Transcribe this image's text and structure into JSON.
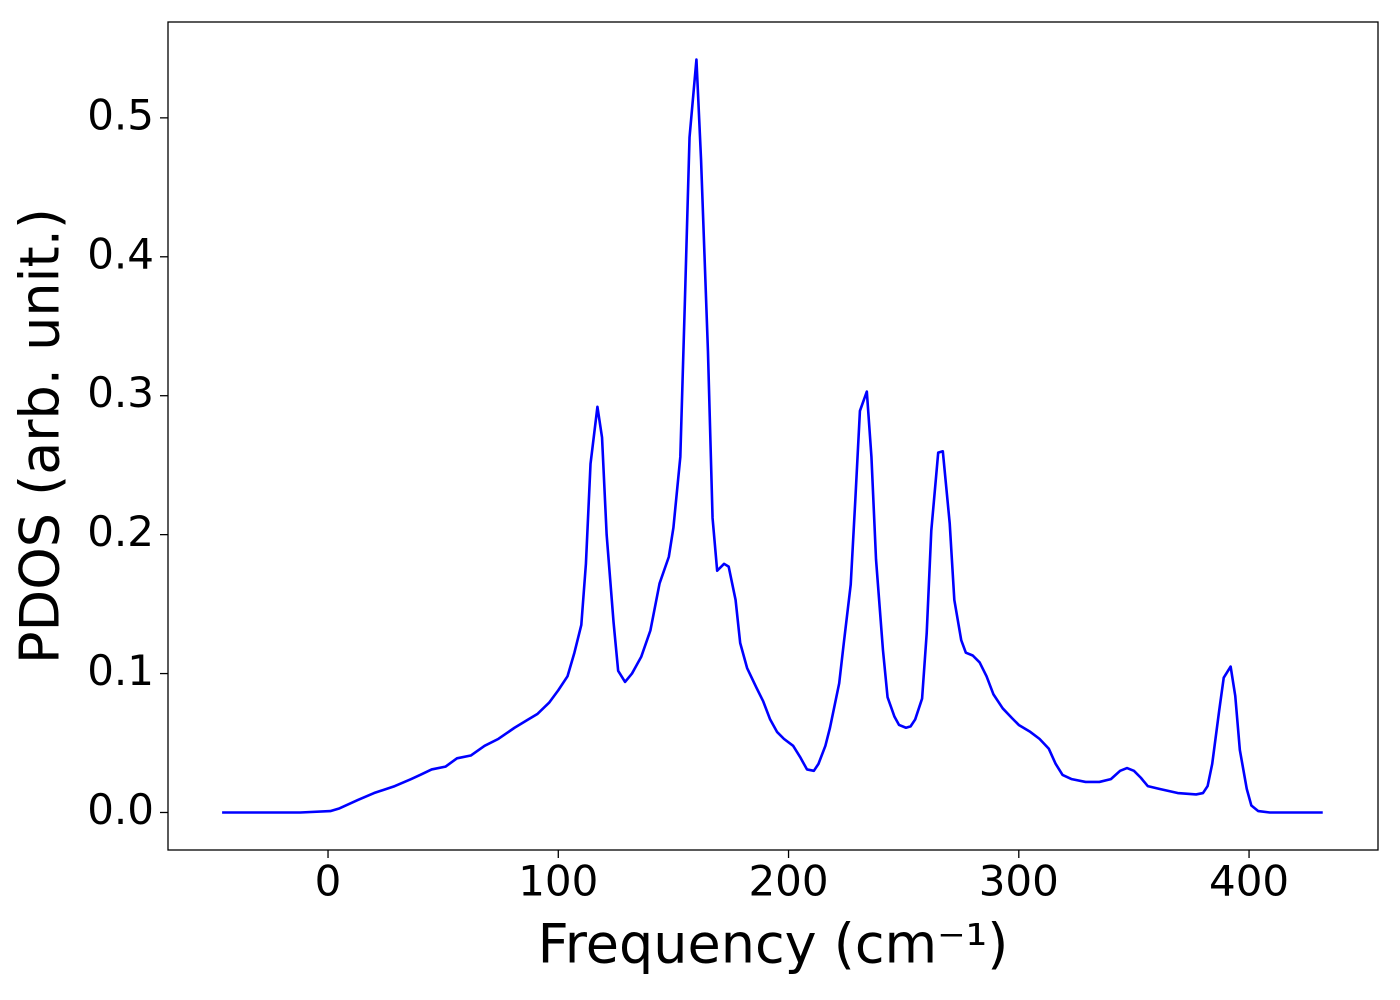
{
  "chart_data": {
    "type": "line",
    "xlabel": "Frequency (cm⁻¹)",
    "ylabel": "PDOS (arb. unit.)",
    "xlim": [
      -69.5,
      456
    ],
    "ylim": [
      -0.027,
      0.569
    ],
    "xticks": [
      0,
      100,
      200,
      300,
      400
    ],
    "yticks": [
      {
        "value": 0,
        "label": "0.0"
      },
      0.1,
      0.2,
      0.3,
      0.4,
      0.5
    ],
    "x": [
      -46,
      -12,
      1,
      5,
      13,
      20,
      29,
      36,
      40,
      45,
      51,
      56,
      62,
      68,
      74,
      81,
      87,
      91,
      96,
      100,
      104,
      107,
      110,
      112,
      114,
      117,
      119,
      121,
      124,
      126,
      129,
      132,
      136,
      140,
      144,
      148,
      150,
      153,
      155,
      157,
      160,
      162,
      165,
      167,
      169,
      172,
      174,
      177,
      179,
      182,
      186,
      189,
      192,
      195,
      198,
      202,
      205,
      208,
      211,
      213,
      216,
      218,
      222,
      224,
      227,
      229,
      231,
      234,
      236,
      238,
      241,
      243,
      246,
      248,
      251,
      253,
      255,
      258,
      260,
      262,
      265,
      267,
      270,
      272,
      275,
      277,
      280,
      283,
      286,
      289,
      293,
      297,
      300,
      305,
      309,
      313,
      316,
      319,
      323,
      329,
      335,
      340,
      344,
      347,
      350,
      353,
      356,
      361,
      369,
      377,
      380,
      382,
      384,
      387,
      389,
      392,
      394,
      396,
      399,
      401,
      404,
      409,
      432
    ],
    "series": [
      {
        "name": "PDOS",
        "color": "#0000ff",
        "values": [
          0,
          0,
          0.001,
          0.003,
          0.009,
          0.014,
          0.019,
          0.024,
          0.027,
          0.031,
          0.033,
          0.039,
          0.041,
          0.048,
          0.053,
          0.061,
          0.067,
          0.071,
          0.079,
          0.088,
          0.098,
          0.115,
          0.135,
          0.179,
          0.251,
          0.292,
          0.27,
          0.2,
          0.137,
          0.102,
          0.094,
          0.1,
          0.112,
          0.131,
          0.165,
          0.184,
          0.205,
          0.256,
          0.369,
          0.486,
          0.542,
          0.47,
          0.332,
          0.212,
          0.174,
          0.179,
          0.177,
          0.153,
          0.122,
          0.104,
          0.09,
          0.08,
          0.067,
          0.058,
          0.053,
          0.048,
          0.04,
          0.031,
          0.03,
          0.035,
          0.048,
          0.061,
          0.093,
          0.122,
          0.164,
          0.225,
          0.289,
          0.303,
          0.256,
          0.182,
          0.117,
          0.083,
          0.069,
          0.063,
          0.061,
          0.062,
          0.067,
          0.082,
          0.129,
          0.203,
          0.259,
          0.26,
          0.208,
          0.153,
          0.124,
          0.115,
          0.113,
          0.108,
          0.098,
          0.085,
          0.075,
          0.068,
          0.063,
          0.058,
          0.053,
          0.046,
          0.035,
          0.027,
          0.024,
          0.022,
          0.022,
          0.024,
          0.03,
          0.032,
          0.03,
          0.025,
          0.019,
          0.017,
          0.014,
          0.013,
          0.014,
          0.019,
          0.035,
          0.073,
          0.097,
          0.105,
          0.084,
          0.045,
          0.017,
          0.005,
          0.001,
          0,
          0
        ]
      }
    ]
  }
}
